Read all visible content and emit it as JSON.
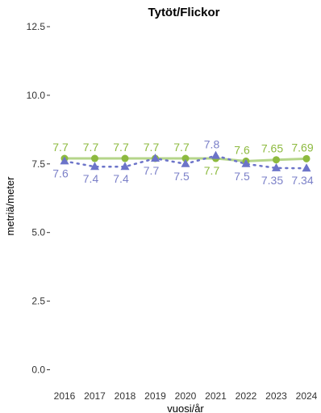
{
  "chart_data": {
    "type": "line",
    "title": "Tytöt/Flickor",
    "xlabel": "vuosi/år",
    "ylabel": "metriä/meter",
    "ylim": [
      0,
      12.5
    ],
    "yticks": [
      "0.0",
      "2.5",
      "5.0",
      "7.5",
      "10.0",
      "12.5"
    ],
    "x": [
      "2016",
      "2017",
      "2018",
      "2019",
      "2020",
      "2021",
      "2022",
      "2023",
      "2024"
    ],
    "grid": false,
    "legend": "none",
    "series": [
      {
        "color": "#8dba3f",
        "line_style": "solid",
        "marker": "circle",
        "values": [
          7.7,
          7.7,
          7.7,
          7.7,
          7.7,
          7.7,
          7.6,
          7.65,
          7.69
        ],
        "labels": [
          "7.7",
          "7.7",
          "7.7",
          "7.7",
          "7.7",
          "7.7",
          "7.6",
          "7.65",
          "7.69"
        ]
      },
      {
        "color": "#6c74c9",
        "line_style": "dotted",
        "marker": "triangle",
        "values": [
          7.6,
          7.4,
          7.4,
          7.7,
          7.5,
          7.8,
          7.5,
          7.35,
          7.34
        ],
        "labels": [
          "7.6",
          "7.4",
          "7.4",
          "7.7",
          "7.5",
          "7.8",
          "7.5",
          "7.35",
          "7.34"
        ]
      }
    ]
  }
}
